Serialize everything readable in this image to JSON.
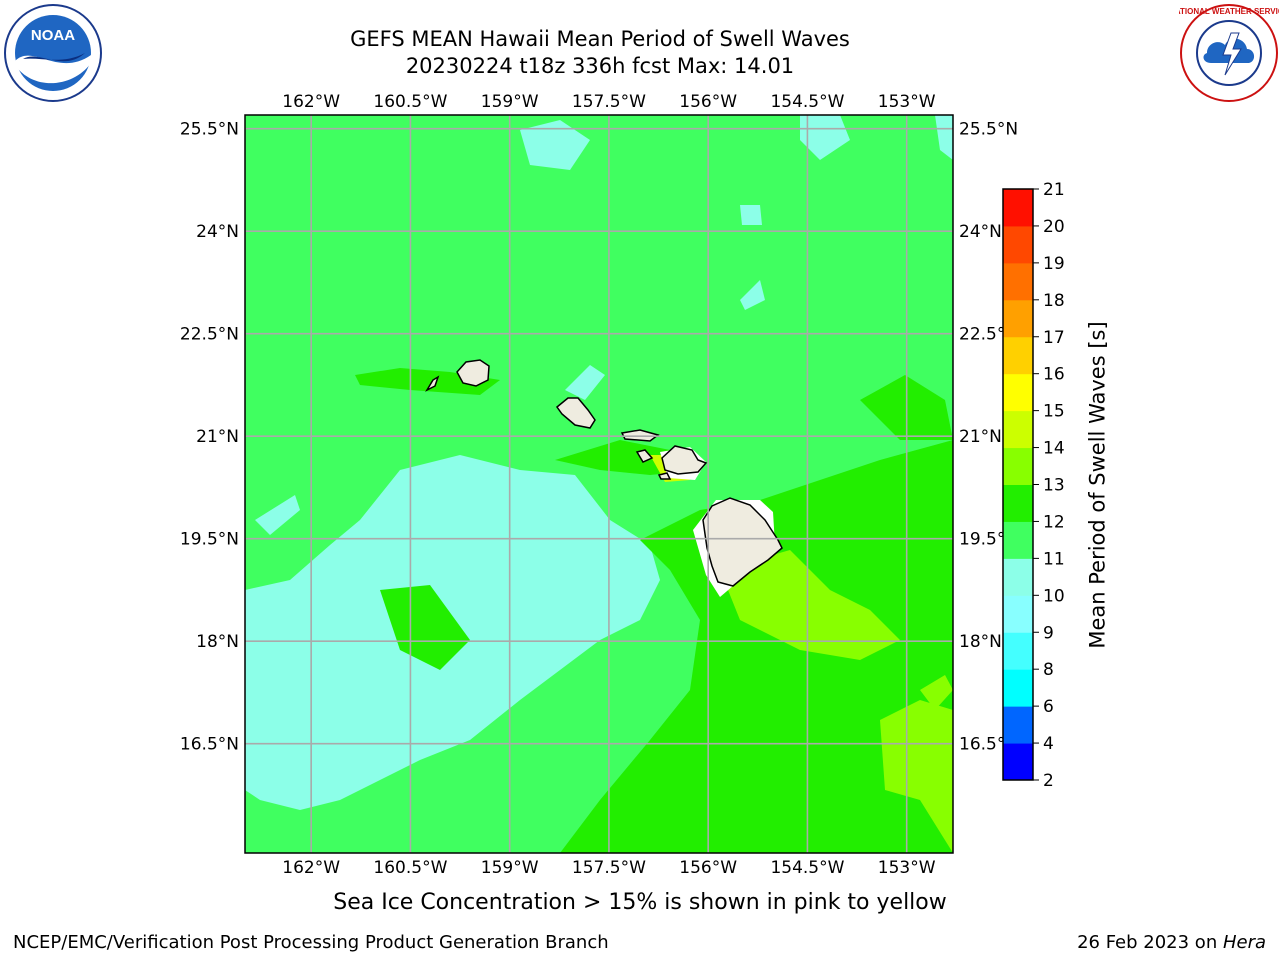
{
  "header": {
    "title_line1": "GEFS MEAN Hawaii Mean Period of Swell Waves",
    "title_line2": "20230224 t18z 336h fcst   Max: 14.01"
  },
  "logos": {
    "left": {
      "text": "NOAA",
      "icon": "noaa-logo"
    },
    "right": {
      "text": "NATIONAL WEATHER SERVICE",
      "icon": "nws-logo"
    }
  },
  "map": {
    "lon_labels": [
      "162°W",
      "160.5°W",
      "159°W",
      "157.5°W",
      "156°W",
      "154.5°W",
      "153°W"
    ],
    "lat_labels": [
      "25.5°N",
      "24°N",
      "22.5°N",
      "21°N",
      "19.5°N",
      "18°N",
      "16.5°N"
    ],
    "lon_values": [
      -162,
      -160.5,
      -159,
      -157.5,
      -156,
      -154.5,
      -153
    ],
    "lat_values": [
      25.5,
      24,
      22.5,
      21,
      19.5,
      18,
      16.5
    ],
    "lon_range": [
      -163,
      -152.3
    ],
    "lat_range": [
      14.9,
      25.7
    ],
    "grid": true,
    "islands": [
      "Niihau",
      "Kauai",
      "Oahu",
      "Molokai",
      "Maui",
      "Lanai",
      "Kahoolawe",
      "Hawaii"
    ]
  },
  "colorbar": {
    "label": "Mean Period of Swell Waves [s]",
    "ticks": [
      "2",
      "4",
      "6",
      "8",
      "9",
      "10",
      "11",
      "12",
      "13",
      "14",
      "15",
      "16",
      "17",
      "18",
      "19",
      "20",
      "21"
    ],
    "colors": [
      "#0000ff",
      "#0066ff",
      "#00ffff",
      "#44ffff",
      "#88ffff",
      "#8cffe8",
      "#40ff60",
      "#22ee00",
      "#88ff00",
      "#ccff00",
      "#ffff00",
      "#ffd000",
      "#ffa000",
      "#ff7000",
      "#ff4800",
      "#ff1000"
    ]
  },
  "caption": "Sea Ice Concentration > 15% is shown in pink to yellow",
  "footer": {
    "left": "NCEP/EMC/Verification Post Processing Product Generation Branch",
    "right_prefix": "26 Feb 2023 on ",
    "right_host": "Hera"
  }
}
